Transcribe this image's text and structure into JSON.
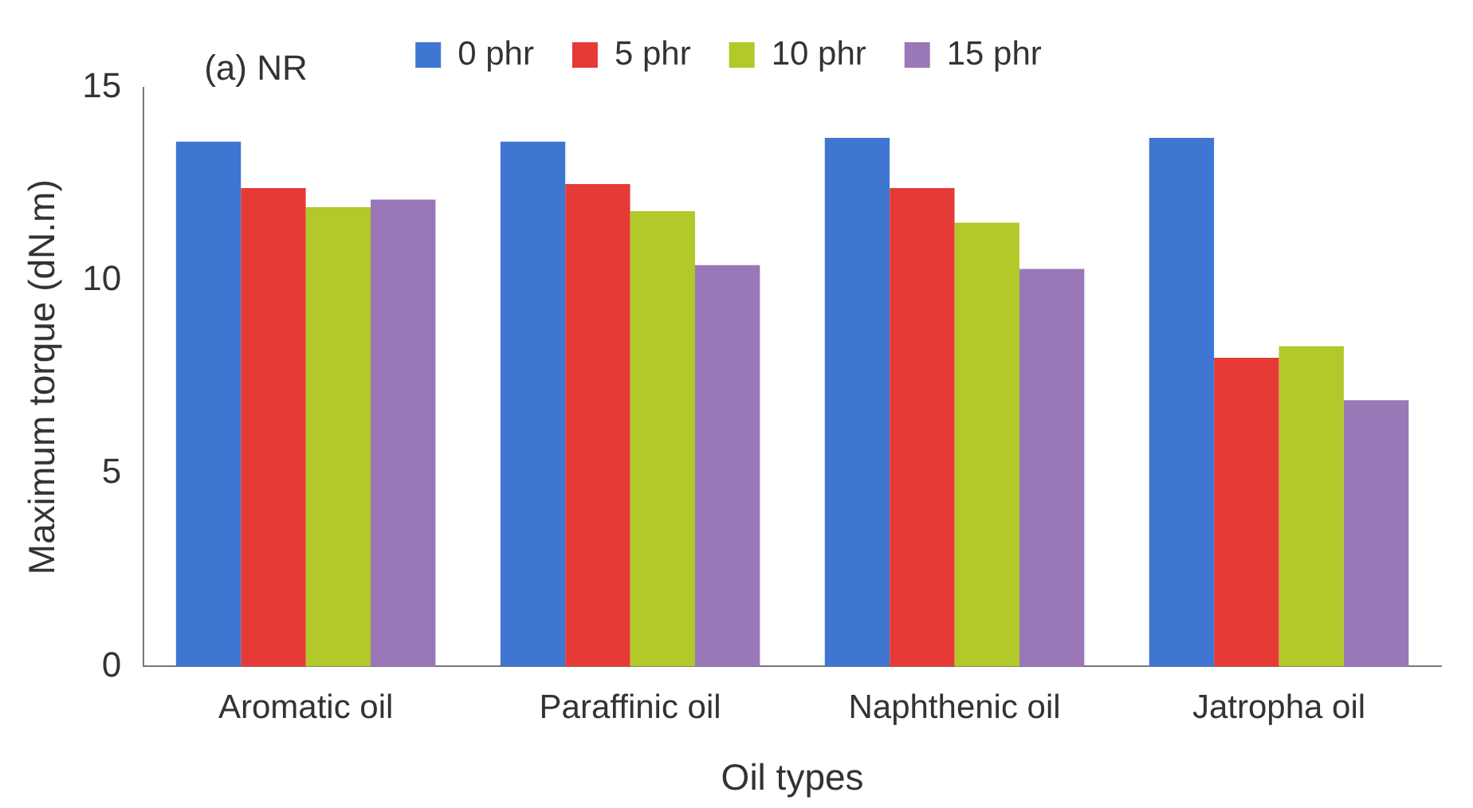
{
  "chart_data": {
    "type": "bar",
    "xlabel": "Oil types",
    "ylabel": "Maximum torque (dN.m)",
    "annotations": [
      "(a) NR"
    ],
    "categories": [
      "Aromatic oil",
      "Paraffinic oil",
      "Naphthenic oil",
      "Jatropha oil"
    ],
    "series": [
      {
        "name": "0 phr",
        "color": "#3f76d2",
        "values": [
          13.6,
          13.6,
          13.7,
          13.7
        ]
      },
      {
        "name": "5 phr",
        "color": "#e63a36",
        "values": [
          12.4,
          12.5,
          12.4,
          8.0
        ]
      },
      {
        "name": "10 phr",
        "color": "#b3c829",
        "values": [
          11.9,
          11.8,
          11.5,
          8.3
        ]
      },
      {
        "name": "15 phr",
        "color": "#9a78b8",
        "values": [
          12.1,
          10.4,
          10.3,
          6.9
        ]
      }
    ],
    "ylim": [
      0,
      15
    ],
    "yticks": [
      0,
      5,
      10,
      15
    ],
    "grid": false,
    "legend": "top"
  }
}
